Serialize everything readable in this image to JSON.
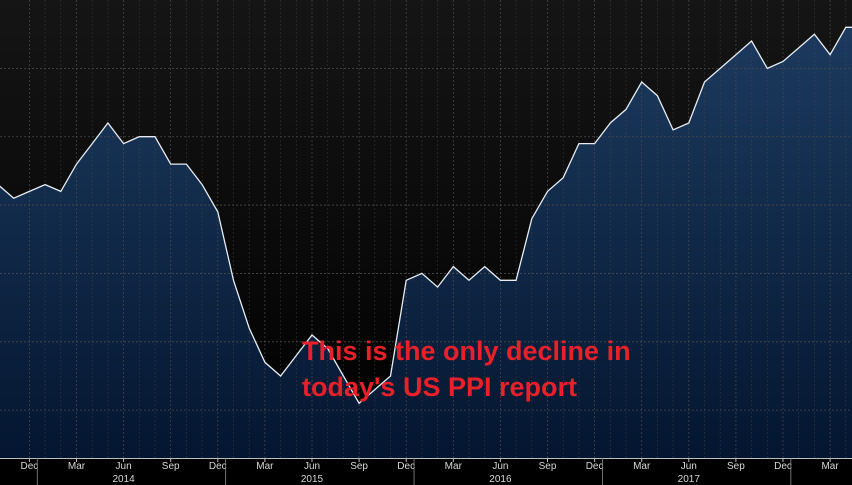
{
  "chart_data": {
    "type": "area",
    "title": "",
    "xlabel": "",
    "ylabel": "",
    "x": [
      "2013-10",
      "2013-11",
      "2013-12",
      "2014-01",
      "2014-02",
      "2014-03",
      "2014-04",
      "2014-05",
      "2014-06",
      "2014-07",
      "2014-08",
      "2014-09",
      "2014-10",
      "2014-11",
      "2014-12",
      "2015-01",
      "2015-02",
      "2015-03",
      "2015-04",
      "2015-05",
      "2015-06",
      "2015-07",
      "2015-08",
      "2015-09",
      "2015-10",
      "2015-11",
      "2015-12",
      "2016-01",
      "2016-02",
      "2016-03",
      "2016-04",
      "2016-05",
      "2016-06",
      "2016-07",
      "2016-08",
      "2016-09",
      "2016-10",
      "2016-11",
      "2016-12",
      "2017-01",
      "2017-02",
      "2017-03",
      "2017-04",
      "2017-05",
      "2017-06",
      "2017-07",
      "2017-08",
      "2017-09",
      "2017-10",
      "2017-11",
      "2017-12",
      "2018-01",
      "2018-02",
      "2018-03",
      "2018-04",
      "2018-05"
    ],
    "values": [
      3.3,
      3.1,
      3.2,
      3.3,
      3.2,
      3.6,
      3.9,
      4.2,
      3.9,
      4.0,
      4.0,
      3.6,
      3.6,
      3.3,
      2.9,
      1.9,
      1.2,
      0.7,
      0.5,
      0.8,
      1.1,
      0.9,
      0.5,
      0.1,
      0.3,
      0.5,
      1.9,
      2.0,
      1.8,
      2.1,
      1.9,
      2.1,
      1.9,
      1.9,
      2.8,
      3.2,
      3.4,
      3.9,
      3.9,
      4.2,
      4.4,
      4.8,
      4.6,
      4.1,
      4.2,
      4.8,
      5.0,
      5.2,
      5.4,
      5.0,
      5.1,
      5.3,
      5.5,
      5.2,
      5.6,
      5.6
    ],
    "x_ticks": [
      "Dec",
      "Mar",
      "Jun",
      "Sep",
      "Dec",
      "Mar",
      "Jun",
      "Sep",
      "Dec",
      "Mar",
      "Jun",
      "Sep",
      "Dec",
      "Mar",
      "Jun",
      "Sep",
      "Dec",
      "Mar"
    ],
    "x_tick_dates": [
      "2013-12",
      "2014-03",
      "2014-06",
      "2014-09",
      "2014-12",
      "2015-03",
      "2015-06",
      "2015-09",
      "2015-12",
      "2016-03",
      "2016-06",
      "2016-09",
      "2016-12",
      "2017-03",
      "2017-06",
      "2017-09",
      "2017-12",
      "2018-03"
    ],
    "year_labels": [
      "2014",
      "2015",
      "2016",
      "2017"
    ],
    "year_label_dates": [
      "2014-06",
      "2015-06",
      "2016-06",
      "2017-06"
    ],
    "ylim": [
      -0.7,
      6.0
    ],
    "grid": true,
    "y_gridlines": [
      0,
      1,
      2,
      3,
      4,
      5
    ],
    "legend": "none",
    "annotation": "This is the only decline in\ntoday's US PPI report",
    "colors": {
      "background_top": "#151515",
      "background_bottom": "#000000",
      "fill_top": "#1c3a5e",
      "fill_bottom": "#041630",
      "line": "#e6ecf2",
      "grid": "#4a4a4a",
      "annotation": "#e8202a"
    }
  }
}
